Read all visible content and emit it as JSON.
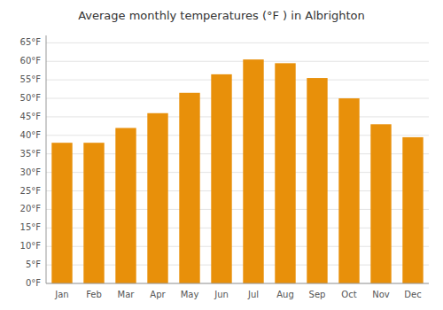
{
  "chart_data": {
    "type": "bar",
    "title": "Average monthly temperatures (°F ) in Albrighton",
    "categories": [
      "Jan",
      "Feb",
      "Mar",
      "Apr",
      "May",
      "Jun",
      "Jul",
      "Aug",
      "Sep",
      "Oct",
      "Nov",
      "Dec"
    ],
    "values": [
      38,
      38,
      42,
      46,
      51.5,
      56.5,
      60.5,
      59.5,
      55.5,
      50,
      43,
      39.5
    ],
    "color": "#E8900A",
    "ylim": [
      0,
      67
    ],
    "yticks": [
      {
        "value": 0,
        "label": "0°F"
      },
      {
        "value": 5,
        "label": "5°F"
      },
      {
        "value": 10,
        "label": "10°F"
      },
      {
        "value": 15,
        "label": "15°F"
      },
      {
        "value": 20,
        "label": "20°F"
      },
      {
        "value": 25,
        "label": "25°F"
      },
      {
        "value": 30,
        "label": "30°F"
      },
      {
        "value": 35,
        "label": "35°F"
      },
      {
        "value": 40,
        "label": "40°F"
      },
      {
        "value": 45,
        "label": "45°F"
      },
      {
        "value": 50,
        "label": "50°F"
      },
      {
        "value": 55,
        "label": "55°F"
      },
      {
        "value": 60,
        "label": "60°F"
      },
      {
        "value": 65,
        "label": "65°F"
      }
    ],
    "grid": true
  }
}
